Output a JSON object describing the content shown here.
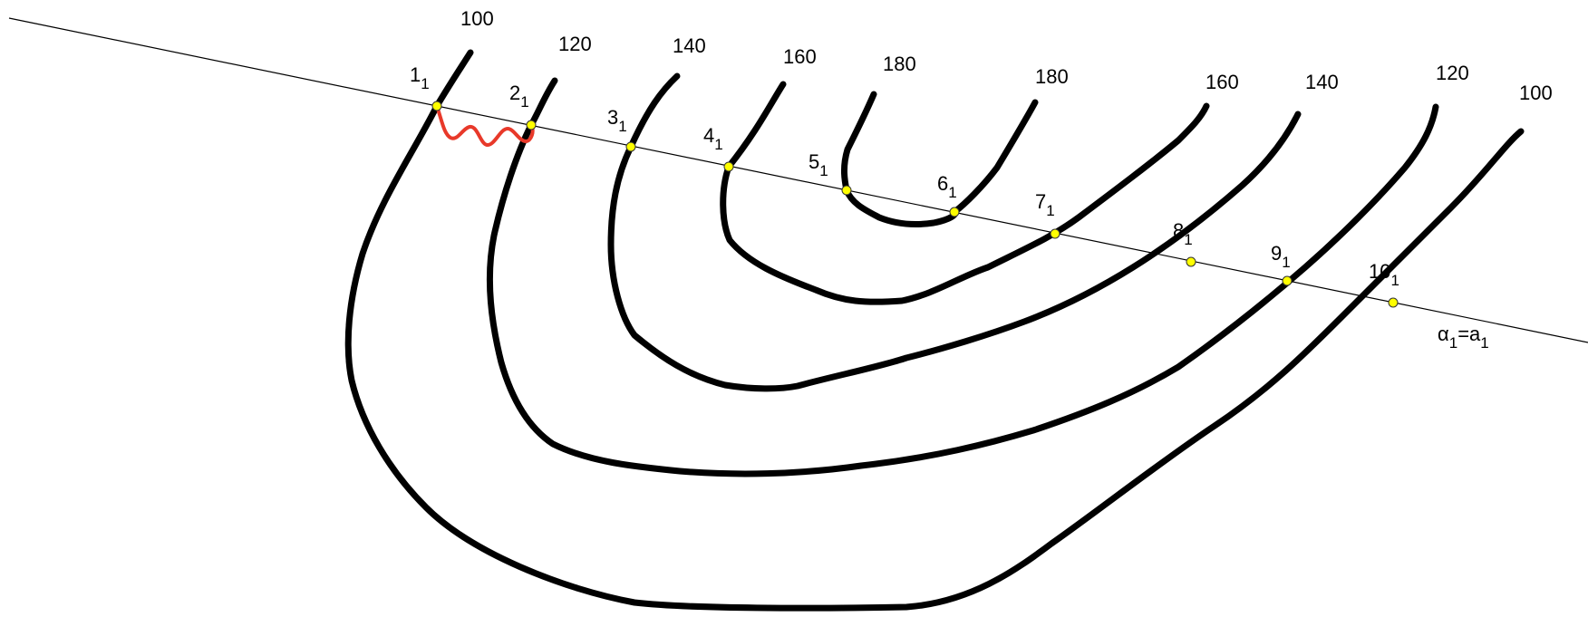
{
  "contours": [
    {
      "id": "c100",
      "left_label": "100",
      "right_label": "100"
    },
    {
      "id": "c120",
      "left_label": "120",
      "right_label": "120"
    },
    {
      "id": "c140",
      "left_label": "140",
      "right_label": "140"
    },
    {
      "id": "c160",
      "left_label": "160",
      "right_label": "160"
    },
    {
      "id": "c180",
      "left_label": "180",
      "right_label": "180"
    }
  ],
  "points": [
    {
      "base": "1",
      "sub": "1"
    },
    {
      "base": "2",
      "sub": "1"
    },
    {
      "base": "3",
      "sub": "1"
    },
    {
      "base": "4",
      "sub": "1"
    },
    {
      "base": "5",
      "sub": "1"
    },
    {
      "base": "6",
      "sub": "1"
    },
    {
      "base": "7",
      "sub": "1"
    },
    {
      "base": "8",
      "sub": "1"
    },
    {
      "base": "9",
      "sub": "1"
    },
    {
      "base": "10",
      "sub": "1"
    }
  ],
  "plane_label": {
    "alpha": "α",
    "sub1": "1",
    "eq": "=a",
    "sub2": "1"
  },
  "colors": {
    "contour": "#000000",
    "highlight": "#e8392a",
    "point": "#ffff00"
  }
}
